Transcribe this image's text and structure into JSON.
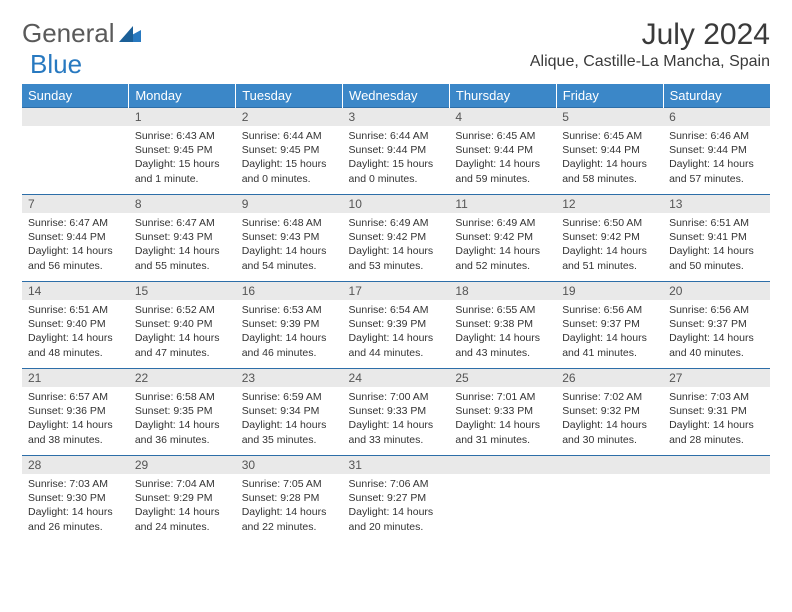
{
  "logo": {
    "text1": "General",
    "text2": "Blue"
  },
  "title": "July 2024",
  "location": "Alique, Castille-La Mancha, Spain",
  "colors": {
    "header_bg": "#3b87c8",
    "header_text": "#ffffff",
    "daynum_bg": "#e9e9e9",
    "row_border": "#2d6ea8",
    "logo_gray": "#5a5a5a",
    "logo_blue": "#2879c0",
    "body_text": "#333333"
  },
  "fonts": {
    "title_pt": 30,
    "location_pt": 16,
    "weekday_pt": 13,
    "daynum_pt": 12,
    "body_pt": 10.5
  },
  "weekdays": [
    "Sunday",
    "Monday",
    "Tuesday",
    "Wednesday",
    "Thursday",
    "Friday",
    "Saturday"
  ],
  "grid": {
    "rows": 5,
    "cols": 7,
    "start_offset": 1,
    "days_in_month": 31
  },
  "days": {
    "1": {
      "sunrise": "6:43 AM",
      "sunset": "9:45 PM",
      "daylight": "15 hours and 1 minute."
    },
    "2": {
      "sunrise": "6:44 AM",
      "sunset": "9:45 PM",
      "daylight": "15 hours and 0 minutes."
    },
    "3": {
      "sunrise": "6:44 AM",
      "sunset": "9:44 PM",
      "daylight": "15 hours and 0 minutes."
    },
    "4": {
      "sunrise": "6:45 AM",
      "sunset": "9:44 PM",
      "daylight": "14 hours and 59 minutes."
    },
    "5": {
      "sunrise": "6:45 AM",
      "sunset": "9:44 PM",
      "daylight": "14 hours and 58 minutes."
    },
    "6": {
      "sunrise": "6:46 AM",
      "sunset": "9:44 PM",
      "daylight": "14 hours and 57 minutes."
    },
    "7": {
      "sunrise": "6:47 AM",
      "sunset": "9:44 PM",
      "daylight": "14 hours and 56 minutes."
    },
    "8": {
      "sunrise": "6:47 AM",
      "sunset": "9:43 PM",
      "daylight": "14 hours and 55 minutes."
    },
    "9": {
      "sunrise": "6:48 AM",
      "sunset": "9:43 PM",
      "daylight": "14 hours and 54 minutes."
    },
    "10": {
      "sunrise": "6:49 AM",
      "sunset": "9:42 PM",
      "daylight": "14 hours and 53 minutes."
    },
    "11": {
      "sunrise": "6:49 AM",
      "sunset": "9:42 PM",
      "daylight": "14 hours and 52 minutes."
    },
    "12": {
      "sunrise": "6:50 AM",
      "sunset": "9:42 PM",
      "daylight": "14 hours and 51 minutes."
    },
    "13": {
      "sunrise": "6:51 AM",
      "sunset": "9:41 PM",
      "daylight": "14 hours and 50 minutes."
    },
    "14": {
      "sunrise": "6:51 AM",
      "sunset": "9:40 PM",
      "daylight": "14 hours and 48 minutes."
    },
    "15": {
      "sunrise": "6:52 AM",
      "sunset": "9:40 PM",
      "daylight": "14 hours and 47 minutes."
    },
    "16": {
      "sunrise": "6:53 AM",
      "sunset": "9:39 PM",
      "daylight": "14 hours and 46 minutes."
    },
    "17": {
      "sunrise": "6:54 AM",
      "sunset": "9:39 PM",
      "daylight": "14 hours and 44 minutes."
    },
    "18": {
      "sunrise": "6:55 AM",
      "sunset": "9:38 PM",
      "daylight": "14 hours and 43 minutes."
    },
    "19": {
      "sunrise": "6:56 AM",
      "sunset": "9:37 PM",
      "daylight": "14 hours and 41 minutes."
    },
    "20": {
      "sunrise": "6:56 AM",
      "sunset": "9:37 PM",
      "daylight": "14 hours and 40 minutes."
    },
    "21": {
      "sunrise": "6:57 AM",
      "sunset": "9:36 PM",
      "daylight": "14 hours and 38 minutes."
    },
    "22": {
      "sunrise": "6:58 AM",
      "sunset": "9:35 PM",
      "daylight": "14 hours and 36 minutes."
    },
    "23": {
      "sunrise": "6:59 AM",
      "sunset": "9:34 PM",
      "daylight": "14 hours and 35 minutes."
    },
    "24": {
      "sunrise": "7:00 AM",
      "sunset": "9:33 PM",
      "daylight": "14 hours and 33 minutes."
    },
    "25": {
      "sunrise": "7:01 AM",
      "sunset": "9:33 PM",
      "daylight": "14 hours and 31 minutes."
    },
    "26": {
      "sunrise": "7:02 AM",
      "sunset": "9:32 PM",
      "daylight": "14 hours and 30 minutes."
    },
    "27": {
      "sunrise": "7:03 AM",
      "sunset": "9:31 PM",
      "daylight": "14 hours and 28 minutes."
    },
    "28": {
      "sunrise": "7:03 AM",
      "sunset": "9:30 PM",
      "daylight": "14 hours and 26 minutes."
    },
    "29": {
      "sunrise": "7:04 AM",
      "sunset": "9:29 PM",
      "daylight": "14 hours and 24 minutes."
    },
    "30": {
      "sunrise": "7:05 AM",
      "sunset": "9:28 PM",
      "daylight": "14 hours and 22 minutes."
    },
    "31": {
      "sunrise": "7:06 AM",
      "sunset": "9:27 PM",
      "daylight": "14 hours and 20 minutes."
    }
  },
  "labels": {
    "sunrise": "Sunrise:",
    "sunset": "Sunset:",
    "daylight": "Daylight:"
  }
}
